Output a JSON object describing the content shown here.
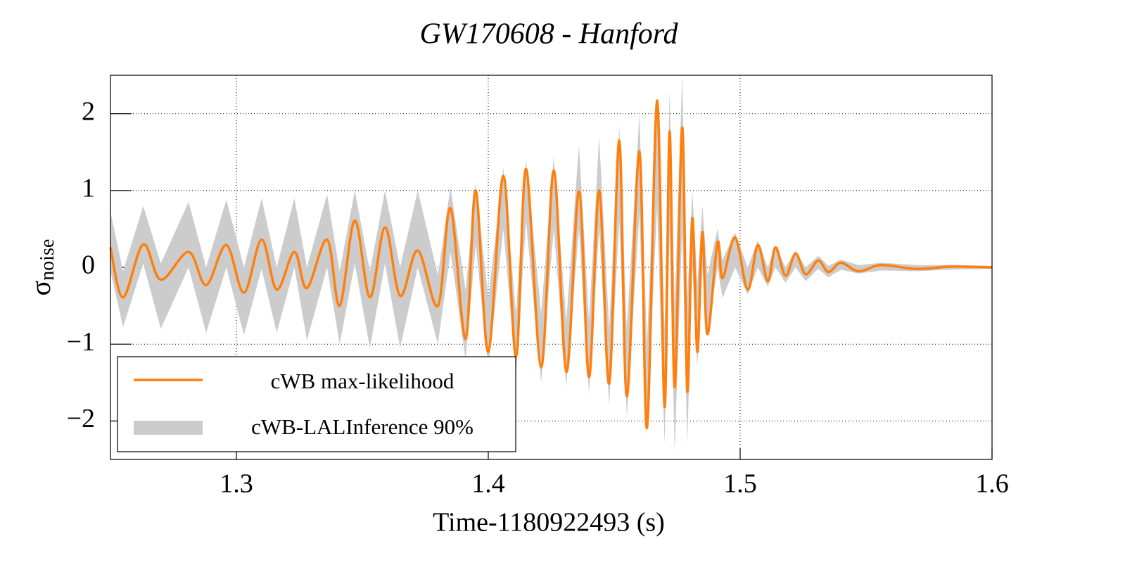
{
  "chart_data": {
    "type": "line",
    "title": "GW170608 - Hanford",
    "x_label": "Time-1180922493 (s)",
    "y_label": "σ",
    "y_label_subscript": "noise",
    "x": [
      1.25,
      1.255,
      1.263,
      1.27,
      1.281,
      1.288,
      1.296,
      1.303,
      1.31,
      1.316,
      1.323,
      1.328,
      1.336,
      1.341,
      1.347,
      1.353,
      1.359,
      1.365,
      1.372,
      1.38,
      1.385,
      1.391,
      1.395,
      1.4,
      1.406,
      1.411,
      1.415,
      1.421,
      1.426,
      1.431,
      1.436,
      1.44,
      1.444,
      1.448,
      1.452,
      1.455,
      1.46,
      1.463,
      1.467,
      1.47,
      1.472,
      1.474,
      1.477,
      1.479,
      1.481,
      1.483,
      1.485,
      1.487,
      1.491,
      1.493,
      1.498,
      1.503,
      1.507,
      1.511,
      1.514,
      1.518,
      1.522,
      1.526,
      1.531,
      1.535,
      1.54,
      1.547,
      1.556,
      1.57,
      1.584,
      1.6
    ],
    "series": [
      {
        "name": "cWB max-likelihood",
        "color": "#ff7f0e",
        "values": [
          0.26,
          -0.39,
          0.3,
          -0.16,
          0.2,
          -0.23,
          0.29,
          -0.33,
          0.36,
          -0.29,
          0.2,
          -0.27,
          0.36,
          -0.5,
          0.61,
          -0.39,
          0.52,
          -0.37,
          0.22,
          -0.5,
          0.77,
          -0.93,
          1.0,
          -1.1,
          1.19,
          -1.16,
          1.28,
          -1.3,
          1.26,
          -1.36,
          0.99,
          -1.43,
          1.0,
          -1.51,
          1.65,
          -1.68,
          1.51,
          -2.09,
          2.17,
          -1.82,
          1.77,
          -1.56,
          1.82,
          -1.61,
          0.64,
          -1.1,
          0.46,
          -0.87,
          0.32,
          -0.14,
          0.39,
          -0.29,
          0.29,
          -0.18,
          0.26,
          -0.11,
          0.18,
          -0.09,
          0.09,
          -0.06,
          0.06,
          -0.05,
          0.03,
          -0.02,
          0.01,
          0.0
        ]
      }
    ],
    "band": {
      "name": "cWB-LALInference 90%",
      "color": "#cccccc",
      "lower": [
        -0.05,
        -0.78,
        0.05,
        -0.8,
        0.0,
        -0.85,
        0.0,
        -0.88,
        -0.02,
        -0.85,
        0.0,
        -0.95,
        0.0,
        -1.0,
        0.05,
        -1.05,
        0.05,
        -1.05,
        0.0,
        -1.0,
        0.2,
        -1.2,
        0.3,
        -1.3,
        0.5,
        -1.4,
        0.6,
        -1.5,
        0.5,
        -1.55,
        0.5,
        -1.65,
        0.5,
        -1.8,
        0.6,
        -1.95,
        0.7,
        -2.2,
        0.8,
        -2.3,
        0.5,
        -2.4,
        0.5,
        -2.3,
        0.0,
        -1.3,
        0.0,
        -0.9,
        0.0,
        -0.4,
        0.0,
        -0.35,
        0.0,
        -0.25,
        0.0,
        -0.2,
        0.0,
        -0.18,
        -0.02,
        -0.13,
        -0.03,
        -0.08,
        -0.04,
        -0.05,
        -0.03,
        -0.02
      ],
      "upper": [
        0.72,
        -0.05,
        0.8,
        0.05,
        0.85,
        0.0,
        0.88,
        0.0,
        0.9,
        0.0,
        0.9,
        0.0,
        0.95,
        -0.05,
        1.0,
        -0.05,
        1.0,
        0.0,
        1.0,
        -0.1,
        1.05,
        -0.3,
        1.1,
        -0.4,
        1.3,
        -0.6,
        1.4,
        -0.6,
        1.45,
        -0.7,
        1.6,
        -0.7,
        1.7,
        -0.8,
        1.85,
        -0.8,
        2.0,
        -1.0,
        2.2,
        -0.8,
        2.3,
        -0.5,
        2.5,
        -0.4,
        1.0,
        -0.2,
        0.8,
        -0.1,
        0.5,
        0.1,
        0.45,
        0.0,
        0.35,
        0.0,
        0.28,
        0.0,
        0.22,
        0.0,
        0.15,
        0.02,
        0.1,
        0.03,
        0.06,
        0.03,
        0.03,
        0.02
      ]
    },
    "xlim": [
      1.25,
      1.6
    ],
    "xticks": [
      1.3,
      1.4,
      1.5,
      1.6
    ],
    "ylim": [
      -2.5,
      2.5
    ],
    "yticks": [
      {
        "value": -2,
        "label": "−2"
      },
      {
        "value": -1,
        "label": "−1"
      },
      0,
      1,
      2
    ],
    "grid": true,
    "legend": "lower left"
  }
}
